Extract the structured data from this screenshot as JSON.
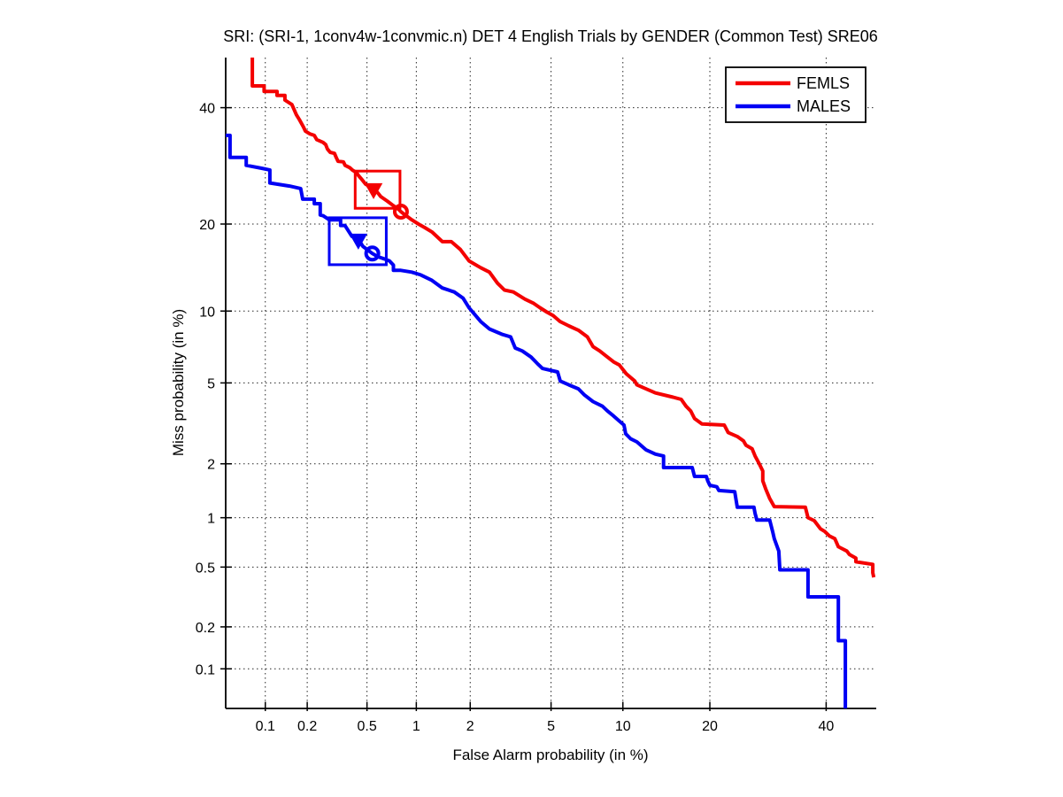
{
  "chart_data": {
    "type": "line",
    "subtype": "DET-curve",
    "title": "SRI: (SRI-1, 1conv4w-1convmic.n) DET 4 English Trials by GENDER (Common Test) SRE06",
    "xlabel": "False Alarm probability (in %)",
    "ylabel": "Miss probability (in %)",
    "x_scale": "probit",
    "y_scale": "probit",
    "axis_range_percent": [
      0.05,
      50
    ],
    "x_ticks_percent": [
      0.1,
      0.2,
      0.5,
      1,
      2,
      5,
      10,
      20,
      40
    ],
    "x_tick_labels": [
      "0.1",
      "0.2",
      "0.5",
      "1",
      "2",
      "5",
      "10",
      "20",
      "40"
    ],
    "y_ticks_percent": [
      40,
      20,
      10,
      5,
      2,
      1,
      0.5,
      0.2,
      0.1
    ],
    "y_tick_labels": [
      "40",
      "20",
      "10",
      "5",
      "2",
      "1",
      "0.5",
      "0.2",
      "0.1"
    ],
    "grid": "dotted",
    "grid_color": "#000000",
    "legend_position": "top-right",
    "series": [
      {
        "name": "FEMLS",
        "color": "#f40000",
        "points": [
          [
            0.08,
            50
          ],
          [
            0.08,
            44.3
          ],
          [
            0.098,
            44.3
          ],
          [
            0.098,
            43.2
          ],
          [
            0.122,
            43.2
          ],
          [
            0.122,
            42.4
          ],
          [
            0.139,
            42.4
          ],
          [
            0.139,
            41.5
          ],
          [
            0.156,
            40.6
          ],
          [
            0.168,
            38.6
          ],
          [
            0.176,
            37.7
          ],
          [
            0.188,
            36.3
          ],
          [
            0.194,
            35.5
          ],
          [
            0.208,
            35.0
          ],
          [
            0.224,
            34.7
          ],
          [
            0.233,
            33.9
          ],
          [
            0.257,
            33.4
          ],
          [
            0.268,
            33.0
          ],
          [
            0.275,
            32.2
          ],
          [
            0.287,
            31.6
          ],
          [
            0.307,
            31.4
          ],
          [
            0.315,
            30.7
          ],
          [
            0.324,
            30.0
          ],
          [
            0.352,
            29.9
          ],
          [
            0.361,
            29.3
          ],
          [
            0.387,
            28.9
          ],
          [
            0.402,
            28.5
          ],
          [
            0.43,
            28.0
          ],
          [
            0.44,
            27.6
          ],
          [
            0.46,
            27.0
          ],
          [
            0.49,
            26.1
          ],
          [
            0.515,
            25.8
          ],
          [
            0.55,
            25.4
          ],
          [
            0.585,
            24.7
          ],
          [
            0.61,
            24.1
          ],
          [
            0.67,
            23.4
          ],
          [
            0.73,
            22.7
          ],
          [
            0.78,
            22.2
          ],
          [
            0.81,
            21.8
          ],
          [
            0.86,
            21.3
          ],
          [
            0.94,
            20.6
          ],
          [
            1.03,
            20.0
          ],
          [
            1.12,
            19.5
          ],
          [
            1.23,
            18.9
          ],
          [
            1.41,
            17.6
          ],
          [
            1.58,
            17.6
          ],
          [
            1.77,
            16.6
          ],
          [
            1.97,
            15.2
          ],
          [
            2.27,
            14.4
          ],
          [
            2.52,
            13.9
          ],
          [
            2.77,
            12.7
          ],
          [
            3.0,
            12.0
          ],
          [
            3.32,
            11.8
          ],
          [
            3.78,
            11.1
          ],
          [
            4.16,
            10.7
          ],
          [
            4.45,
            10.3
          ],
          [
            4.79,
            9.9
          ],
          [
            5.11,
            9.6
          ],
          [
            5.49,
            9.1
          ],
          [
            6.0,
            8.75
          ],
          [
            6.6,
            8.4
          ],
          [
            7.2,
            7.9
          ],
          [
            7.6,
            7.2
          ],
          [
            8.1,
            6.9
          ],
          [
            8.7,
            6.5
          ],
          [
            9.2,
            6.2
          ],
          [
            9.7,
            6.0
          ],
          [
            10.3,
            5.5
          ],
          [
            11.1,
            5.1
          ],
          [
            11.3,
            4.9
          ],
          [
            12.2,
            4.7
          ],
          [
            13.2,
            4.5
          ],
          [
            15.2,
            4.3
          ],
          [
            16.2,
            4.2
          ],
          [
            16.8,
            3.9
          ],
          [
            17.4,
            3.7
          ],
          [
            17.9,
            3.4
          ],
          [
            18.9,
            3.2
          ],
          [
            22.1,
            3.16
          ],
          [
            22.7,
            2.9
          ],
          [
            24.1,
            2.77
          ],
          [
            25.1,
            2.63
          ],
          [
            25.5,
            2.5
          ],
          [
            26.5,
            2.4
          ],
          [
            27.0,
            2.2
          ],
          [
            27.7,
            2.0
          ],
          [
            28.3,
            1.83
          ],
          [
            28.3,
            1.62
          ],
          [
            28.8,
            1.46
          ],
          [
            29.5,
            1.29
          ],
          [
            30.3,
            1.16
          ],
          [
            36.0,
            1.15
          ],
          [
            36.5,
            1.0
          ],
          [
            37.7,
            0.96
          ],
          [
            38.9,
            0.86
          ],
          [
            39.7,
            0.83
          ],
          [
            40.6,
            0.78
          ],
          [
            41.7,
            0.75
          ],
          [
            42.4,
            0.67
          ],
          [
            44.1,
            0.63
          ],
          [
            44.6,
            0.6
          ],
          [
            45.9,
            0.57
          ],
          [
            45.9,
            0.54
          ],
          [
            49.3,
            0.52
          ],
          [
            49.3,
            0.46
          ],
          [
            49.5,
            0.43
          ]
        ],
        "markers": [
          {
            "shape": "triangle-down",
            "filled": true,
            "fa": 0.55,
            "miss": 25.4
          },
          {
            "shape": "circle",
            "filled": false,
            "fa": 0.81,
            "miss": 21.8
          }
        ],
        "highlight_box": {
          "fa": [
            0.42,
            0.8
          ],
          "miss": [
            22.3,
            28.3
          ]
        }
      },
      {
        "name": "MALES",
        "color": "#0000f4",
        "points": [
          [
            0.05,
            34.7
          ],
          [
            0.054,
            34.7
          ],
          [
            0.054,
            30.7
          ],
          [
            0.072,
            30.7
          ],
          [
            0.072,
            29.3
          ],
          [
            0.093,
            28.8
          ],
          [
            0.108,
            28.5
          ],
          [
            0.108,
            26.3
          ],
          [
            0.15,
            25.8
          ],
          [
            0.18,
            25.4
          ],
          [
            0.186,
            23.7
          ],
          [
            0.224,
            23.7
          ],
          [
            0.224,
            23.0
          ],
          [
            0.246,
            23.0
          ],
          [
            0.246,
            21.3
          ],
          [
            0.257,
            21.2
          ],
          [
            0.283,
            20.6
          ],
          [
            0.337,
            20.6
          ],
          [
            0.337,
            19.8
          ],
          [
            0.36,
            19.8
          ],
          [
            0.4,
            18.3
          ],
          [
            0.44,
            17.95
          ],
          [
            0.47,
            17.0
          ],
          [
            0.54,
            16.1
          ],
          [
            0.585,
            15.7
          ],
          [
            0.65,
            15.4
          ],
          [
            0.69,
            15.2
          ],
          [
            0.73,
            14.7
          ],
          [
            0.73,
            14.1
          ],
          [
            0.81,
            14.1
          ],
          [
            0.94,
            13.9
          ],
          [
            1.06,
            13.6
          ],
          [
            1.23,
            13.0
          ],
          [
            1.41,
            12.2
          ],
          [
            1.64,
            11.8
          ],
          [
            1.83,
            11.2
          ],
          [
            1.97,
            10.3
          ],
          [
            2.27,
            9.1
          ],
          [
            2.52,
            8.5
          ],
          [
            2.91,
            8.1
          ],
          [
            3.22,
            7.9
          ],
          [
            3.39,
            7.1
          ],
          [
            3.67,
            6.9
          ],
          [
            4.04,
            6.5
          ],
          [
            4.32,
            6.1
          ],
          [
            4.57,
            5.8
          ],
          [
            5.35,
            5.6
          ],
          [
            5.5,
            5.1
          ],
          [
            6.0,
            4.9
          ],
          [
            6.6,
            4.7
          ],
          [
            7.0,
            4.4
          ],
          [
            7.6,
            4.1
          ],
          [
            8.3,
            3.9
          ],
          [
            8.7,
            3.7
          ],
          [
            9.2,
            3.5
          ],
          [
            9.7,
            3.3
          ],
          [
            10.1,
            3.16
          ],
          [
            10.25,
            2.86
          ],
          [
            10.7,
            2.7
          ],
          [
            11.3,
            2.6
          ],
          [
            12.2,
            2.37
          ],
          [
            13.2,
            2.25
          ],
          [
            14.1,
            2.2
          ],
          [
            14.1,
            1.91
          ],
          [
            17.6,
            1.91
          ],
          [
            17.9,
            1.71
          ],
          [
            19.5,
            1.71
          ],
          [
            19.7,
            1.62
          ],
          [
            20.0,
            1.53
          ],
          [
            21.0,
            1.5
          ],
          [
            21.3,
            1.43
          ],
          [
            23.7,
            1.41
          ],
          [
            24.1,
            1.15
          ],
          [
            26.8,
            1.15
          ],
          [
            27.0,
            1.06
          ],
          [
            27.3,
            0.97
          ],
          [
            29.5,
            0.97
          ],
          [
            30.0,
            0.83
          ],
          [
            30.3,
            0.75
          ],
          [
            31.1,
            0.63
          ],
          [
            31.3,
            0.48
          ],
          [
            36.5,
            0.48
          ],
          [
            36.5,
            0.32
          ],
          [
            42.4,
            0.32
          ],
          [
            42.4,
            0.16
          ],
          [
            43.8,
            0.16
          ],
          [
            43.8,
            0.05
          ]
        ],
        "markers": [
          {
            "shape": "triangle-down",
            "filled": true,
            "fa": 0.44,
            "miss": 17.95
          },
          {
            "shape": "circle",
            "filled": false,
            "fa": 0.54,
            "miss": 16.1
          }
        ],
        "highlight_box": {
          "fa": [
            0.283,
            0.66
          ],
          "miss": [
            14.75,
            20.9
          ]
        }
      }
    ]
  },
  "legend": {
    "items": [
      {
        "label": "FEMLS",
        "color": "#f40000"
      },
      {
        "label": "MALES",
        "color": "#0000f4"
      }
    ]
  }
}
